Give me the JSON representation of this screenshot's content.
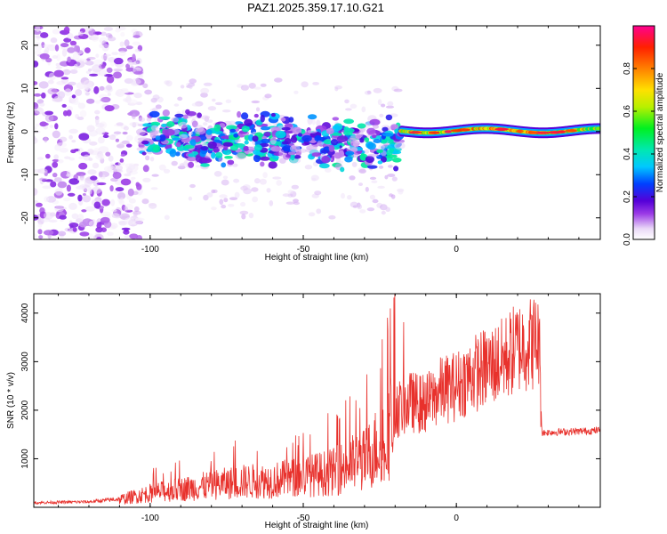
{
  "title": "PAZ1.2025.359.17.10.G21",
  "chart_data": [
    {
      "type": "heatmap",
      "xlabel": "Height of straight line (km)",
      "ylabel": "Frequency (Hz)",
      "xlim": [
        -138,
        47
      ],
      "ylim": [
        -25,
        24.5
      ],
      "xticks": [
        -100,
        -50,
        0
      ],
      "yticks": [
        -20,
        -10,
        0,
        10,
        20
      ],
      "colorbar": {
        "label": "Normalized spectral amplitude",
        "range": [
          0,
          1
        ],
        "ticks": [
          0.0,
          0.2,
          0.4,
          0.6,
          0.8
        ],
        "tick_labels": [
          "0.0",
          "0.2",
          "0.4",
          "0.6",
          "0.8"
        ]
      },
      "description_regions": [
        {
          "x_range": [
            -138,
            -103
          ],
          "freq_range": [
            -25,
            24.5
          ],
          "amplitude": [
            0.02,
            0.15
          ]
        },
        {
          "x_range": [
            -103,
            -18
          ],
          "freq_range": [
            -14,
            6
          ],
          "amplitude": [
            0.05,
            0.45
          ]
        },
        {
          "x_range": [
            -18,
            47
          ],
          "freq_range": [
            -2,
            2.5
          ],
          "amplitude": [
            0.2,
            1.0
          ]
        }
      ]
    },
    {
      "type": "line",
      "xlabel": "Height of straight line (km)",
      "ylabel": "SNR (10 * v/v)",
      "xlim": [
        -138,
        47
      ],
      "ylim": [
        0,
        4400
      ],
      "xticks": [
        -100,
        -50,
        0
      ],
      "yticks": [
        1000,
        2000,
        3000,
        4000
      ],
      "color": "#e8312c",
      "series": [
        {
          "name": "SNR",
          "x": [
            -138,
            -130,
            -120,
            -110,
            -100,
            -90,
            -80,
            -70,
            -60,
            -50,
            -40,
            -35,
            -30,
            -25,
            -20,
            -15,
            -10,
            -5,
            0,
            5,
            10,
            15,
            20,
            25,
            27,
            28,
            30,
            35,
            40,
            47
          ],
          "values": [
            100,
            110,
            120,
            180,
            330,
            420,
            520,
            600,
            630,
            720,
            830,
            1000,
            1100,
            1500,
            2100,
            2300,
            2250,
            2550,
            2650,
            2900,
            3050,
            3200,
            3500,
            3600,
            3650,
            1550,
            1560,
            1570,
            1580,
            1600
          ]
        }
      ]
    }
  ]
}
